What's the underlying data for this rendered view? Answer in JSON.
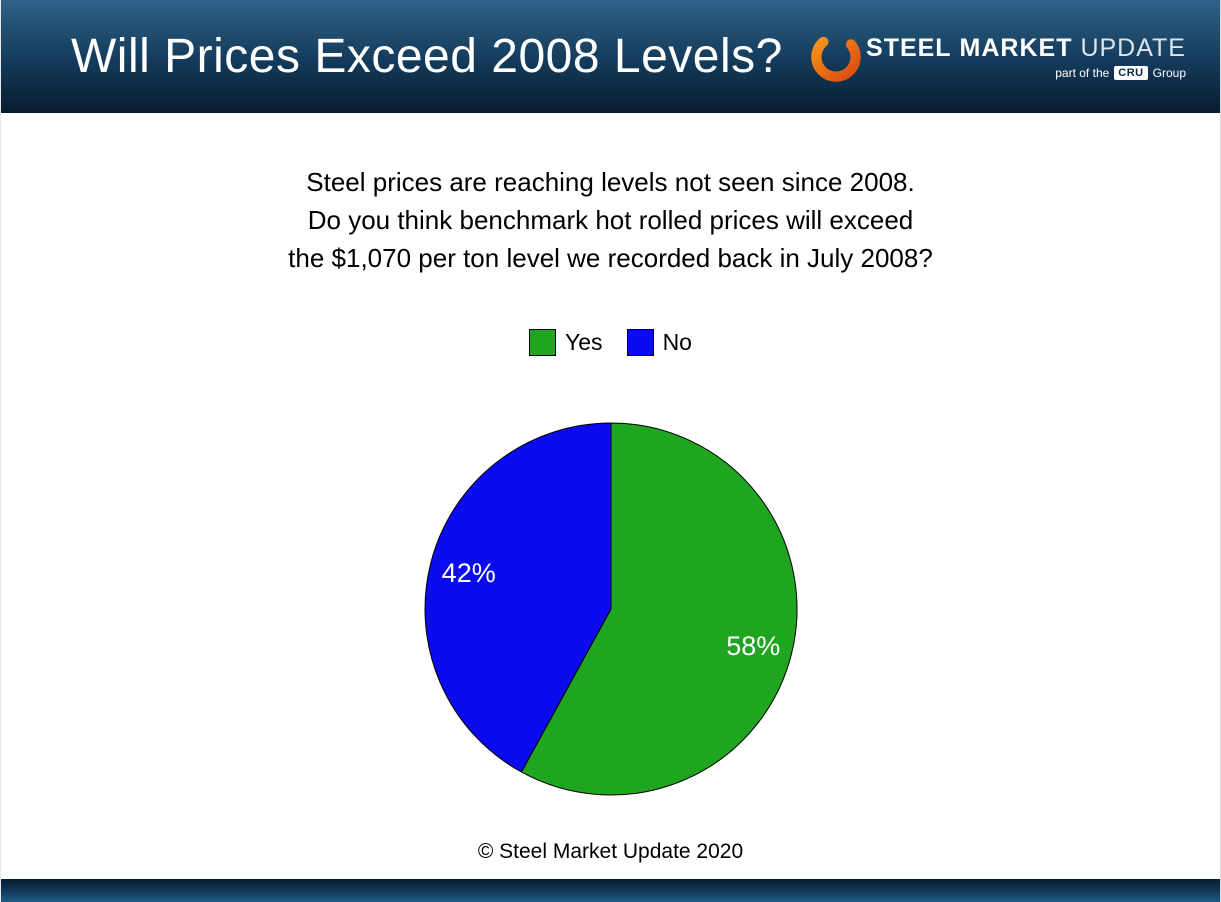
{
  "header": {
    "title": "Will Prices Exceed 2008 Levels?",
    "logo": {
      "steel": "STEEL",
      "market": "MARKET",
      "update": "UPDATE",
      "tagline_prefix": "part of the",
      "cru": "CRU",
      "tagline_suffix": "Group"
    },
    "colors": {
      "banner_top": "#2e6288",
      "banner_bottom": "#081c30",
      "swoosh_orange": "#f6921e",
      "swoosh_red": "#d94a10"
    }
  },
  "question": {
    "lines": [
      "Steel prices are reaching levels not seen since 2008.",
      "Do you think benchmark hot rolled prices will exceed",
      "the $1,070 per ton level we recorded back in July 2008?"
    ]
  },
  "chart_data": {
    "type": "pie",
    "labels": [
      "Yes",
      "No"
    ],
    "values": [
      58,
      42
    ],
    "data_labels": [
      "58%",
      "42%"
    ],
    "colors": [
      "#1fa51f",
      "#0b0bf0"
    ],
    "slice_border_color": "#000000",
    "label_color": "#ffffff",
    "start_angle_deg": 0,
    "direction": "clockwise",
    "legend_position": "top",
    "title": ""
  },
  "footer": {
    "copyright": "© Steel Market Update 2020"
  }
}
